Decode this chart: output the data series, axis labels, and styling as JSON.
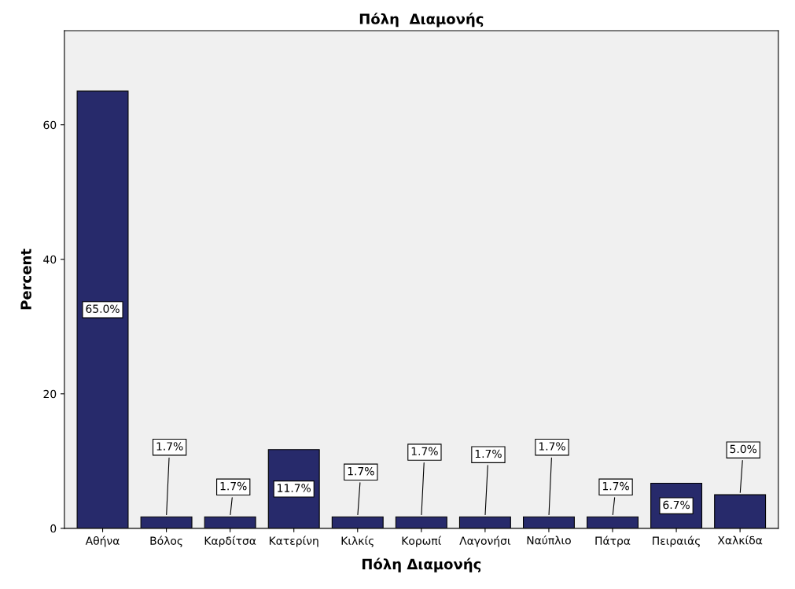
{
  "chart_data": {
    "type": "bar",
    "title": "Πόλη  Διαμονής",
    "xlabel": "Πόλη Διαμονής",
    "ylabel": "Percent",
    "categories": [
      "Αθήνα",
      "Βόλος",
      "Καρδίτσα",
      "Κατερίνη",
      "Κιλκίς",
      "Κορωπί",
      "Λαγονήσι",
      "Ναύπλιο",
      "Πάτρα",
      "Πειραιάς",
      "Χαλκίδα"
    ],
    "values": [
      65.0,
      1.7,
      1.7,
      11.7,
      1.7,
      1.7,
      1.7,
      1.7,
      1.7,
      6.7,
      5.0
    ],
    "value_labels": [
      "65.0%",
      "1.7%",
      "1.7%",
      "11.7%",
      "1.7%",
      "1.7%",
      "1.7%",
      "1.7%",
      "1.7%",
      "6.7%",
      "5.0%"
    ],
    "color": "#272a6b",
    "ylim": [
      0,
      74
    ],
    "yticks": [
      0,
      20,
      40,
      60
    ],
    "grid": false
  }
}
